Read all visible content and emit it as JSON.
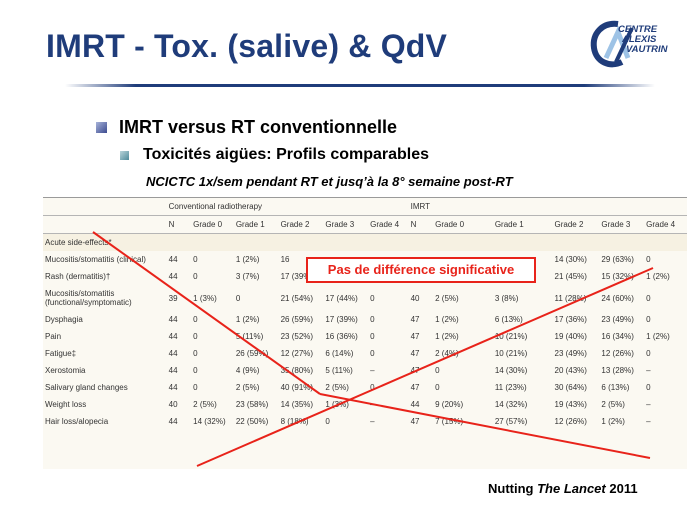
{
  "slide": {
    "title": "IMRT - Tox. (salive) & QdV",
    "bullet_1": "IMRT versus RT conventionnelle",
    "bullet_2": "Toxicités aigües: Profils comparables",
    "note": "NCICTC 1x/sem pendant RT et jusq’à la 8° semaine post-RT",
    "annotation": "Pas de différence significative",
    "citation_author": "Nutting",
    "citation_journal": "The Lancet",
    "citation_year": "2011",
    "colors": {
      "title": "#1f3c7a",
      "annotation_red": "#e8231a"
    }
  },
  "logo": {
    "line1": "CENTRE",
    "line2": "ALEXIS",
    "line3": "VAUTRIN"
  },
  "table": {
    "group_conventional": "Conventional radiotherapy",
    "group_imrt": "IMRT",
    "headers": [
      "N",
      "Grade 0",
      "Grade 1",
      "Grade 2",
      "Grade 3",
      "Grade 4",
      "N",
      "Grade 0",
      "Grade 1",
      "Grade 2",
      "Grade 3",
      "Grade 4"
    ],
    "section": "Acute side-effects*",
    "rows": [
      {
        "name": "Mucositis/stomatitis (clinical)",
        "cells": [
          "44",
          "0",
          "1 (2%)",
          "16",
          "",
          "",
          "",
          "",
          "",
          "14 (30%)",
          "29 (63%)",
          "0"
        ]
      },
      {
        "name": "Rash (dermatitis)†",
        "cells": [
          "44",
          "0",
          "3 (7%)",
          "17 (39%)",
          "24 (55%)",
          "0",
          "47",
          "1 (2%)",
          "9 (19%)",
          "21 (45%)",
          "15 (32%)",
          "1 (2%)"
        ]
      },
      {
        "name": "Mucositis/stomatitis (functional/symptomatic)",
        "cells": [
          "39",
          "1 (3%)",
          "0",
          "21 (54%)",
          "17 (44%)",
          "0",
          "40",
          "2 (5%)",
          "3 (8%)",
          "11 (28%)",
          "24 (60%)",
          "0"
        ]
      },
      {
        "name": "Dysphagia",
        "cells": [
          "44",
          "0",
          "1 (2%)",
          "26 (59%)",
          "17 (39%)",
          "0",
          "47",
          "1 (2%)",
          "6 (13%)",
          "17 (36%)",
          "23 (49%)",
          "0"
        ]
      },
      {
        "name": "Pain",
        "cells": [
          "44",
          "0",
          "5 (11%)",
          "23 (52%)",
          "16 (36%)",
          "0",
          "47",
          "1 (2%)",
          "10 (21%)",
          "19 (40%)",
          "16 (34%)",
          "1 (2%)"
        ]
      },
      {
        "name": "Fatigue‡",
        "cells": [
          "44",
          "0",
          "26 (59%)",
          "12 (27%)",
          "6 (14%)",
          "0",
          "47",
          "2 (4%)",
          "10 (21%)",
          "23 (49%)",
          "12 (26%)",
          "0"
        ]
      },
      {
        "name": "Xerostomia",
        "cells": [
          "44",
          "0",
          "4 (9%)",
          "35 (80%)",
          "5 (11%)",
          "–",
          "47",
          "0",
          "14 (30%)",
          "20 (43%)",
          "13 (28%)",
          "–"
        ]
      },
      {
        "name": "Salivary gland changes",
        "cells": [
          "44",
          "0",
          "2 (5%)",
          "40 (91%)",
          "2 (5%)",
          "0",
          "47",
          "0",
          "11 (23%)",
          "30 (64%)",
          "6 (13%)",
          "0"
        ]
      },
      {
        "name": "Weight loss",
        "cells": [
          "40",
          "2 (5%)",
          "23 (58%)",
          "14 (35%)",
          "1 (3%)",
          "–",
          "44",
          "9 (20%)",
          "14 (32%)",
          "19 (43%)",
          "2 (5%)",
          "–"
        ]
      },
      {
        "name": "Hair loss/alopecia",
        "cells": [
          "44",
          "14 (32%)",
          "22 (50%)",
          "8 (18%)",
          "0",
          "–",
          "47",
          "7 (15%)",
          "27 (57%)",
          "12 (26%)",
          "1 (2%)",
          "–"
        ]
      }
    ]
  }
}
